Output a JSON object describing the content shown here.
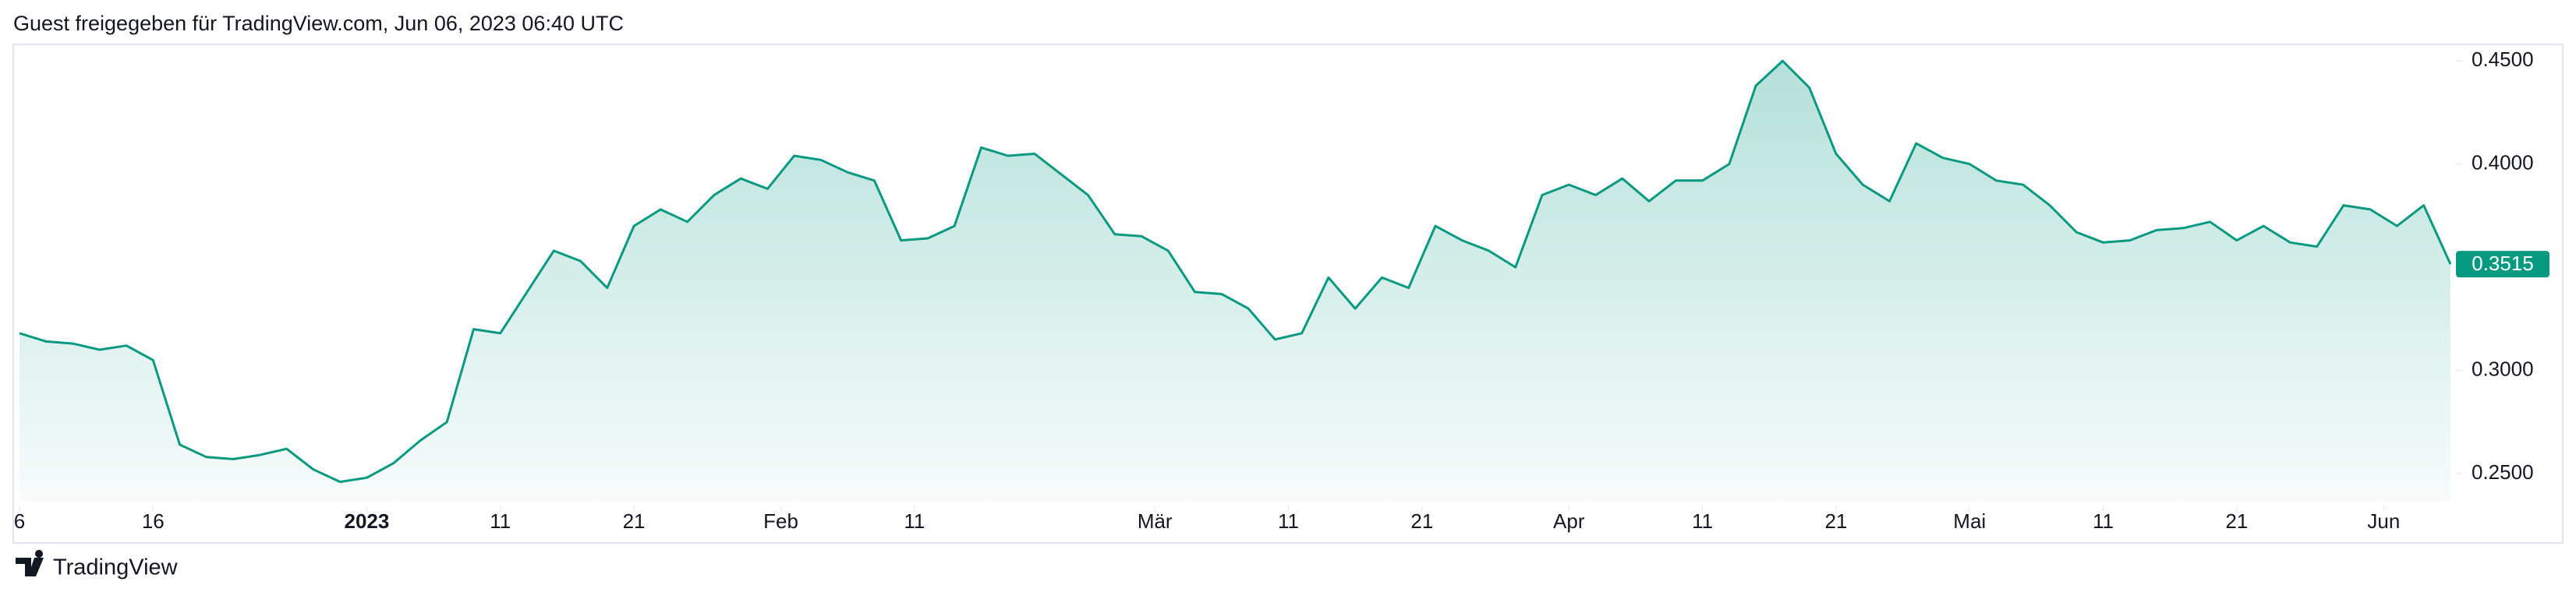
{
  "header": "Guest freigegeben für TradingView.com, Jun 06, 2023 06:40 UTC",
  "footer": "TradingView",
  "chart_data": {
    "type": "area",
    "color": "#089981",
    "values": [
      0.318,
      0.314,
      0.313,
      0.31,
      0.312,
      0.305,
      0.264,
      0.258,
      0.257,
      0.259,
      0.262,
      0.252,
      0.246,
      0.248,
      0.255,
      0.266,
      0.275,
      0.32,
      0.318,
      0.338,
      0.358,
      0.353,
      0.34,
      0.37,
      0.378,
      0.372,
      0.385,
      0.393,
      0.388,
      0.404,
      0.402,
      0.396,
      0.392,
      0.363,
      0.364,
      0.37,
      0.408,
      0.404,
      0.405,
      0.395,
      0.385,
      0.366,
      0.365,
      0.358,
      0.338,
      0.337,
      0.33,
      0.315,
      0.318,
      0.345,
      0.33,
      0.345,
      0.34,
      0.37,
      0.363,
      0.358,
      0.35,
      0.385,
      0.39,
      0.385,
      0.393,
      0.382,
      0.392,
      0.392,
      0.4,
      0.438,
      0.45,
      0.437,
      0.405,
      0.39,
      0.382,
      0.41,
      0.403,
      0.4,
      0.392,
      0.39,
      0.38,
      0.367,
      0.362,
      0.363,
      0.368,
      0.369,
      0.372,
      0.363,
      0.37,
      0.362,
      0.36,
      0.38,
      0.378,
      0.37,
      0.38,
      0.3515
    ],
    "xlim": [
      0,
      91
    ],
    "xticks": [
      {
        "value": 0,
        "label": "6"
      },
      {
        "value": 5,
        "label": "16"
      },
      {
        "value": 13,
        "label": "2023"
      },
      {
        "value": 18,
        "label": "11"
      },
      {
        "value": 23,
        "label": "21"
      },
      {
        "value": 28.5,
        "label": "Feb"
      },
      {
        "value": 33.5,
        "label": "11"
      },
      {
        "value": 42.5,
        "label": "Mär"
      },
      {
        "value": 47.5,
        "label": "11"
      },
      {
        "value": 52.5,
        "label": "21"
      },
      {
        "value": 58,
        "label": "Apr"
      },
      {
        "value": 63,
        "label": "11"
      },
      {
        "value": 68,
        "label": "21"
      },
      {
        "value": 73,
        "label": "Mai"
      },
      {
        "value": 78,
        "label": "11"
      },
      {
        "value": 83,
        "label": "21"
      },
      {
        "value": 88.5,
        "label": "Jun"
      }
    ],
    "ylim": [
      0.2364,
      0.458
    ],
    "yticks": [
      {
        "value": 0.25,
        "label": "0.2500"
      },
      {
        "value": 0.3,
        "label": "0.3000"
      },
      {
        "value": 0.4,
        "label": "0.4000"
      },
      {
        "value": 0.45,
        "label": "0.4500"
      }
    ]
  }
}
